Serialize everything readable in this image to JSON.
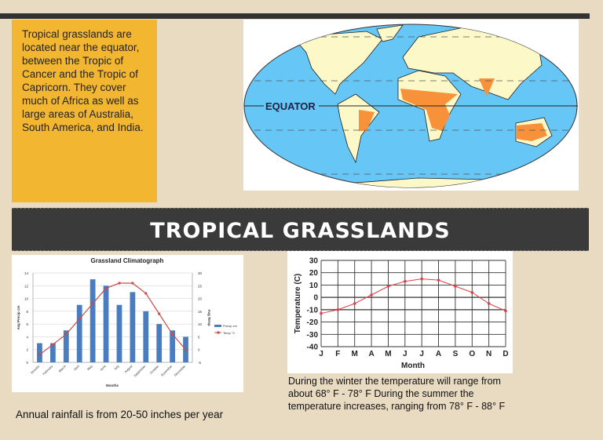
{
  "intro_text": "Tropical grasslands are located near the equator, between the Tropic of Cancer and the Tropic of Capricorn. They cover much of Africa as well as large areas of Australia, South America, and India.",
  "map": {
    "equator_label": "EQUATOR",
    "colors": {
      "ocean": "#66c6f5",
      "land": "#fdf8c8",
      "grassland": "#f7923a"
    }
  },
  "banner_title": "TROPICAL GRASSLANDS",
  "rainfall_text": "Annual rainfall is from 20-50 inches per year",
  "temperature_text": "During the winter the temperature will range from about 68° F - 78° F  During the summer the temperature increases, ranging from 78° F - 88° F",
  "chart_data": [
    {
      "type": "bar",
      "title": "Grassland Climatograph",
      "xlabel": "Months",
      "ylabel": "Avg Precip cm",
      "y2label": "Avg Temp",
      "categories": [
        "January",
        "February",
        "March",
        "April",
        "May",
        "June",
        "July",
        "August",
        "September",
        "October",
        "November",
        "December"
      ],
      "ylim": [
        0,
        14
      ],
      "yticks": [
        0,
        2,
        4,
        6,
        8,
        10,
        12,
        14
      ],
      "y2lim": [
        -5,
        30
      ],
      "y2ticks": [
        -5,
        0,
        5,
        10,
        15,
        20,
        25,
        30
      ],
      "grid": true,
      "legend": "right",
      "series": [
        {
          "name": "Precip cm",
          "type": "bar",
          "axis": "left",
          "color": "#4a7cc0",
          "values": [
            3,
            3,
            5,
            9,
            13,
            12,
            9,
            11,
            8,
            6,
            5,
            4
          ]
        },
        {
          "name": "Temp °C",
          "type": "line",
          "axis": "right",
          "color": "#c0504d",
          "values": [
            -2,
            2,
            6,
            12,
            18,
            24,
            26,
            26,
            22,
            14,
            6,
            0
          ]
        }
      ]
    },
    {
      "type": "line",
      "xlabel": "Month",
      "ylabel": "Temperature (C)",
      "categories": [
        "J",
        "F",
        "M",
        "A",
        "M",
        "J",
        "J",
        "A",
        "S",
        "O",
        "N",
        "D"
      ],
      "ylim": [
        -40,
        30
      ],
      "yticks": [
        30,
        20,
        10,
        0,
        -10,
        -20,
        -30,
        -40
      ],
      "grid": true,
      "series": [
        {
          "color": "#e0404a",
          "values": [
            -13,
            -10,
            -5,
            2,
            9,
            13,
            15,
            14,
            9,
            4,
            -5,
            -11
          ]
        }
      ]
    }
  ]
}
